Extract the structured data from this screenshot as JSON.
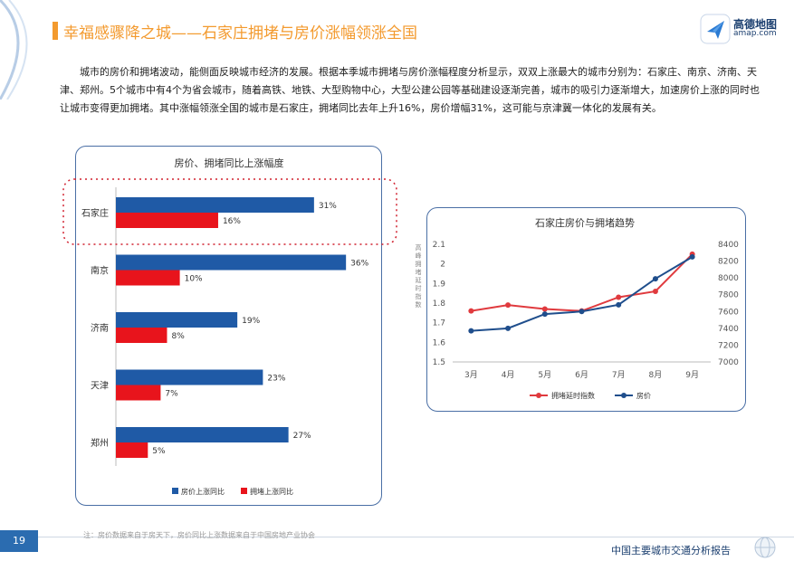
{
  "header": {
    "title": "幸福感骤降之城——石家庄拥堵与房价涨幅领涨全国",
    "logo_text": "高德地图",
    "logo_url": "amap.com"
  },
  "intro_text": "城市的房价和拥堵波动，能侧面反映城市经济的发展。根据本季城市拥堵与房价涨幅程度分析显示，双双上涨最大的城市分别为：石家庄、南京、济南、天津、郑州。5个城市中有4个为省会城市，随着高铁、地铁、大型购物中心，大型公建公园等基础建设逐渐完善，城市的吸引力逐渐增大，加速房价上涨的同时也让城市变得更加拥堵。其中涨幅领涨全国的城市是石家庄，拥堵同比去年上升16%，房价增幅31%，这可能与京津冀一体化的发展有关。",
  "footer": {
    "page_number": "19",
    "note": "注：房价数据来自于房天下，房价同比上涨数据来自于中国房地产业协会",
    "report_name": "中国主要城市交通分析报告"
  },
  "colors": {
    "accent": "#f39a2e",
    "blue": "#1f5aa6",
    "red": "#e8141c",
    "house_line": "#1f4e8c",
    "congestion_line": "#e03a3e"
  },
  "chart_data": [
    {
      "type": "bar",
      "orientation": "horizontal",
      "title": "房价、拥堵同比上涨幅度",
      "categories": [
        "石家庄",
        "南京",
        "济南",
        "天津",
        "郑州"
      ],
      "series": [
        {
          "name": "房价上涨同比",
          "values": [
            31,
            36,
            19,
            23,
            27
          ],
          "labels": [
            "31%",
            "36%",
            "19%",
            "23%",
            "27%"
          ],
          "color": "#1f5aa6"
        },
        {
          "name": "拥堵上涨同比",
          "values": [
            16,
            10,
            8,
            7,
            5
          ],
          "labels": [
            "16%",
            "10%",
            "8%",
            "7%",
            "5%"
          ],
          "color": "#e8141c"
        }
      ],
      "highlight": "石家庄",
      "legend_position": "bottom"
    },
    {
      "type": "line",
      "title": "石家庄房价与拥堵趋势",
      "categories": [
        "3月",
        "4月",
        "5月",
        "6月",
        "7月",
        "8月",
        "9月"
      ],
      "left_axis": {
        "label": "高峰拥堵延时指数",
        "ticks": [
          "1.5",
          "1.6",
          "1.7",
          "1.8",
          "1.9",
          "2",
          "2.1"
        ],
        "range": [
          1.5,
          2.1
        ]
      },
      "right_axis": {
        "ticks": [
          "7000",
          "7200",
          "7400",
          "7600",
          "7800",
          "8000",
          "8200",
          "8400"
        ],
        "range": [
          7000,
          8400
        ]
      },
      "series": [
        {
          "name": "拥堵延时指数",
          "axis": "left",
          "values": [
            1.76,
            1.79,
            1.77,
            1.76,
            1.83,
            1.86,
            2.05
          ],
          "color": "#e03a3e"
        },
        {
          "name": "房价",
          "axis": "right",
          "values": [
            7370,
            7400,
            7570,
            7600,
            7680,
            7990,
            8250
          ],
          "color": "#1f4e8c"
        }
      ],
      "legend_position": "bottom"
    }
  ]
}
